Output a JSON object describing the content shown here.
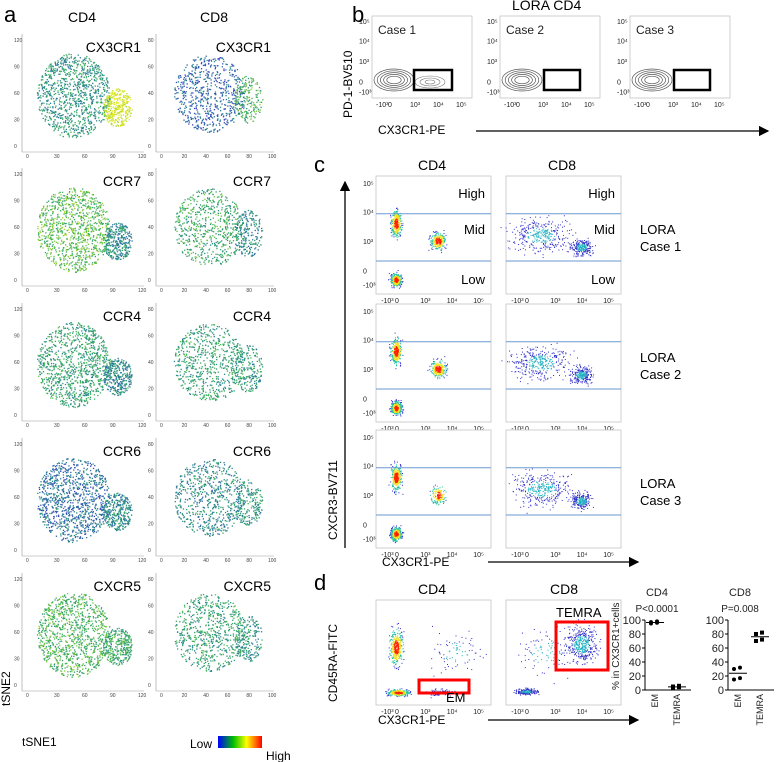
{
  "panel_a": {
    "letter": "a",
    "col_headers": [
      "CD4",
      "CD8"
    ],
    "markers": [
      "CX3CR1",
      "CCR7",
      "CCR4",
      "CCR6",
      "CXCR5"
    ],
    "cd4_ticks": [
      "0",
      "30",
      "60",
      "90",
      "120"
    ],
    "cd8_ticks": [
      "0",
      "20",
      "40",
      "60",
      "80",
      "100"
    ],
    "y_label": "tSNE2",
    "x_label": "tSNE1",
    "colorbar": {
      "low": "Low",
      "high": "High",
      "colors": [
        "#0000ff",
        "#00c000",
        "#ffff00",
        "#ff0000"
      ]
    }
  },
  "panel_b": {
    "letter": "b",
    "title": "LORA CD4",
    "cases": [
      "Case 1",
      "Case 2",
      "Case 3"
    ],
    "y_label": "PD-1-BV510",
    "x_label": "CX3CR1-PE",
    "ticks": [
      "-10³",
      "0",
      "10³",
      "10⁴",
      "10⁵"
    ]
  },
  "panel_c": {
    "letter": "c",
    "col_headers": [
      "CD4",
      "CD8"
    ],
    "gates": [
      "High",
      "Mid",
      "Low"
    ],
    "cases": [
      [
        "LORA",
        "Case 1"
      ],
      [
        "LORA",
        "Case 2"
      ],
      [
        "LORA",
        "Case 3"
      ]
    ],
    "y_label": "CXCR3-BV711",
    "x_label": "CX3CR1-PE",
    "ticks": [
      "-10³",
      "0",
      "10³",
      "10⁴",
      "10⁵"
    ]
  },
  "panel_d": {
    "letter": "d",
    "col_headers": [
      "CD4",
      "CD8"
    ],
    "y_label": "CD45RA-FITC",
    "x_label": "CX3CR1-PE",
    "gate_cd4": "EM",
    "gate_cd8": "TEMRA",
    "gate_color": "#ff0000"
  },
  "chart_data": [
    {
      "type": "scatter",
      "title": "CD4",
      "annotation": "P<0.0001",
      "ylabel": "% in CX3CR1+cells",
      "categories": [
        "EM",
        "TEMRA"
      ],
      "ylim": [
        0,
        100
      ],
      "yticks": [
        "0",
        "20",
        "40",
        "60",
        "80",
        "100"
      ],
      "series": [
        {
          "name": "EM",
          "values": [
            95,
            96,
            97,
            98
          ],
          "median": 96.5
        },
        {
          "name": "TEMRA",
          "values": [
            3,
            4,
            5,
            6
          ],
          "median": 4.5
        }
      ]
    },
    {
      "type": "scatter",
      "title": "CD8",
      "annotation": "P=0.008",
      "ylabel": "",
      "categories": [
        "EM",
        "TEMRA"
      ],
      "ylim": [
        0,
        100
      ],
      "yticks": [
        "0",
        "20",
        "40",
        "60",
        "80",
        "100"
      ],
      "series": [
        {
          "name": "EM",
          "values": [
            15,
            17,
            30,
            32
          ],
          "median": 24
        },
        {
          "name": "TEMRA",
          "values": [
            70,
            72,
            80,
            82
          ],
          "median": 76
        }
      ]
    }
  ]
}
